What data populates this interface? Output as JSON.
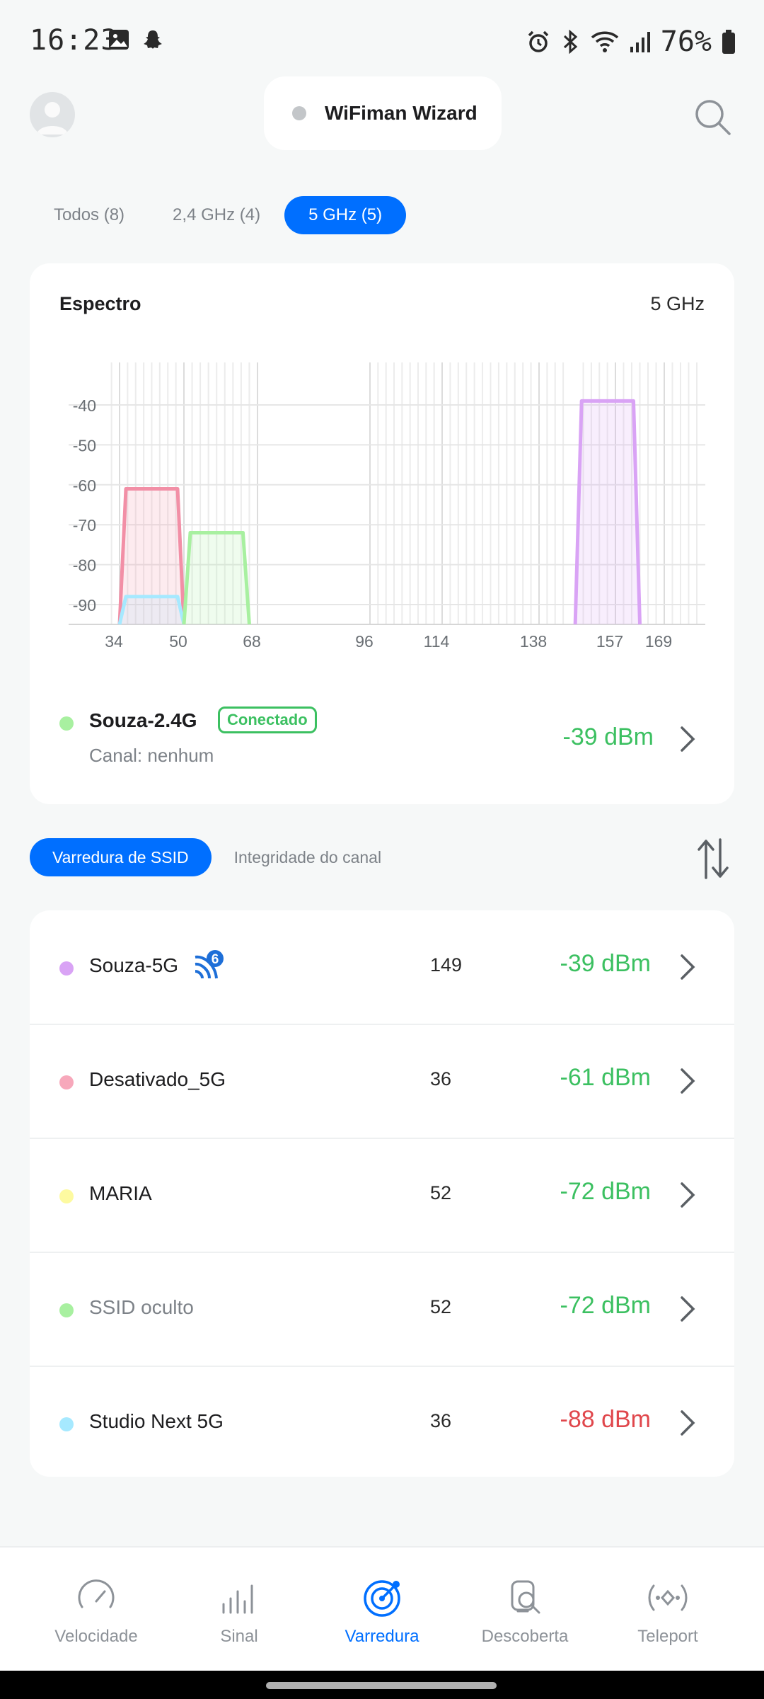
{
  "status_bar": {
    "time": "16:23",
    "battery_percent": "76%",
    "icons": [
      "image-icon",
      "snapchat-icon",
      "alarm-icon",
      "bluetooth-icon",
      "wifi-icon",
      "cellular-signal-icon",
      "battery-icon"
    ]
  },
  "header": {
    "wizard_label": "WiFiman Wizard",
    "avatar_icon": "user-avatar-icon",
    "search_icon": "search-icon"
  },
  "band_tabs": [
    {
      "label": "Todos (8)",
      "active": false
    },
    {
      "label": "2,4 GHz (4)",
      "active": false
    },
    {
      "label": "5 GHz (5)",
      "active": true
    }
  ],
  "spectrum": {
    "title": "Espectro",
    "band": "5 GHz",
    "connected": {
      "name": "Souza-2.4G",
      "badge": "Conectado",
      "channel": "Canal: nenhum",
      "signal": "-39 dBm",
      "color": "#a8f0a0"
    }
  },
  "chart_data": {
    "type": "area",
    "y_ticks": [
      "-40",
      "-50",
      "-60",
      "-70",
      "-80",
      "-90"
    ],
    "ylim": [
      -95,
      -30
    ],
    "x_ticks": [
      "34",
      "50",
      "68",
      "96",
      "114",
      "138",
      "157",
      "169"
    ],
    "grid": true,
    "series": [
      {
        "color": "#f28fa6",
        "channel": 36,
        "width_channels": 16,
        "dbm": -61
      },
      {
        "color": "#a6e9ff",
        "channel": 36,
        "width_channels": 16,
        "dbm": -88
      },
      {
        "color": "#a8f0a0",
        "channel": 52,
        "width_channels": 16,
        "dbm": -72
      },
      {
        "color": "#d9a3f5",
        "channel": 149,
        "width_channels": 16,
        "dbm": -39
      }
    ]
  },
  "scan_tabs": [
    {
      "label": "Varredura de SSID",
      "active": true
    },
    {
      "label": "Integridade do canal",
      "active": false
    }
  ],
  "networks": [
    {
      "name": "Souza-5G",
      "channel": "149",
      "signal": "-39 dBm",
      "dot": "#d9a3f5",
      "signal_color": "#3cc061",
      "wifi6": true,
      "muted": false
    },
    {
      "name": "Desativado_5G",
      "channel": "36",
      "signal": "-61 dBm",
      "dot": "#f7a8bb",
      "signal_color": "#3cc061",
      "wifi6": false,
      "muted": false
    },
    {
      "name": "MARIA",
      "channel": "52",
      "signal": "-72 dBm",
      "dot": "#fdfaa0",
      "signal_color": "#3cc061",
      "wifi6": false,
      "muted": false
    },
    {
      "name": "SSID oculto",
      "channel": "52",
      "signal": "-72 dBm",
      "dot": "#a8f0a0",
      "signal_color": "#3cc061",
      "wifi6": false,
      "muted": true
    },
    {
      "name": "Studio Next 5G",
      "channel": "36",
      "signal": "-88 dBm",
      "dot": "#a6e9ff",
      "signal_color": "#e0474c",
      "wifi6": false,
      "muted": false
    }
  ],
  "bottom_nav": [
    {
      "label": "Velocidade",
      "icon": "speedometer-icon",
      "active": false
    },
    {
      "label": "Sinal",
      "icon": "signal-bars-icon",
      "active": false
    },
    {
      "label": "Varredura",
      "icon": "radar-icon",
      "active": true
    },
    {
      "label": "Descoberta",
      "icon": "device-discovery-icon",
      "active": false
    },
    {
      "label": "Teleport",
      "icon": "teleport-icon",
      "active": false
    }
  ]
}
